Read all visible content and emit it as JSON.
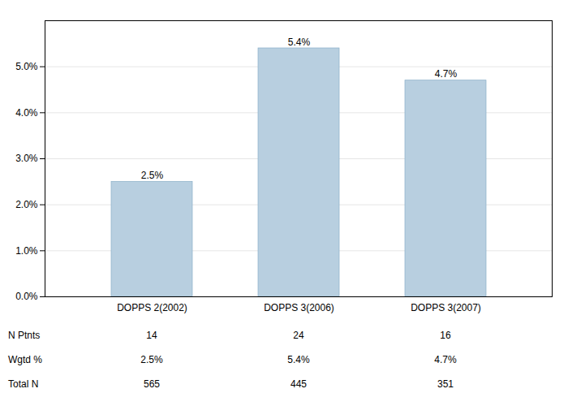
{
  "chart_data": {
    "type": "bar",
    "categories": [
      "DOPPS 2(2002)",
      "DOPPS 3(2006)",
      "DOPPS 3(2007)"
    ],
    "values": [
      2.5,
      5.4,
      4.7
    ],
    "value_labels": [
      "2.5%",
      "5.4%",
      "4.7%"
    ],
    "data_labels": true,
    "color": "#b8cfe0",
    "ylim": [
      0,
      6.0
    ],
    "yticks": [
      {
        "value": 0.0,
        "label": "0.0%"
      },
      {
        "value": 1.0,
        "label": "1.0%"
      },
      {
        "value": 2.0,
        "label": "2.0%"
      },
      {
        "value": 3.0,
        "label": "3.0%"
      },
      {
        "value": 4.0,
        "label": "4.0%"
      },
      {
        "value": 5.0,
        "label": "5.0%"
      }
    ],
    "grid": true,
    "table": [
      {
        "label": "N Ptnts",
        "values": [
          "14",
          "24",
          "16"
        ]
      },
      {
        "label": "Wgtd %",
        "values": [
          "2.5%",
          "5.4%",
          "4.7%"
        ]
      },
      {
        "label": "Total N",
        "values": [
          "565",
          "445",
          "351"
        ]
      }
    ]
  }
}
